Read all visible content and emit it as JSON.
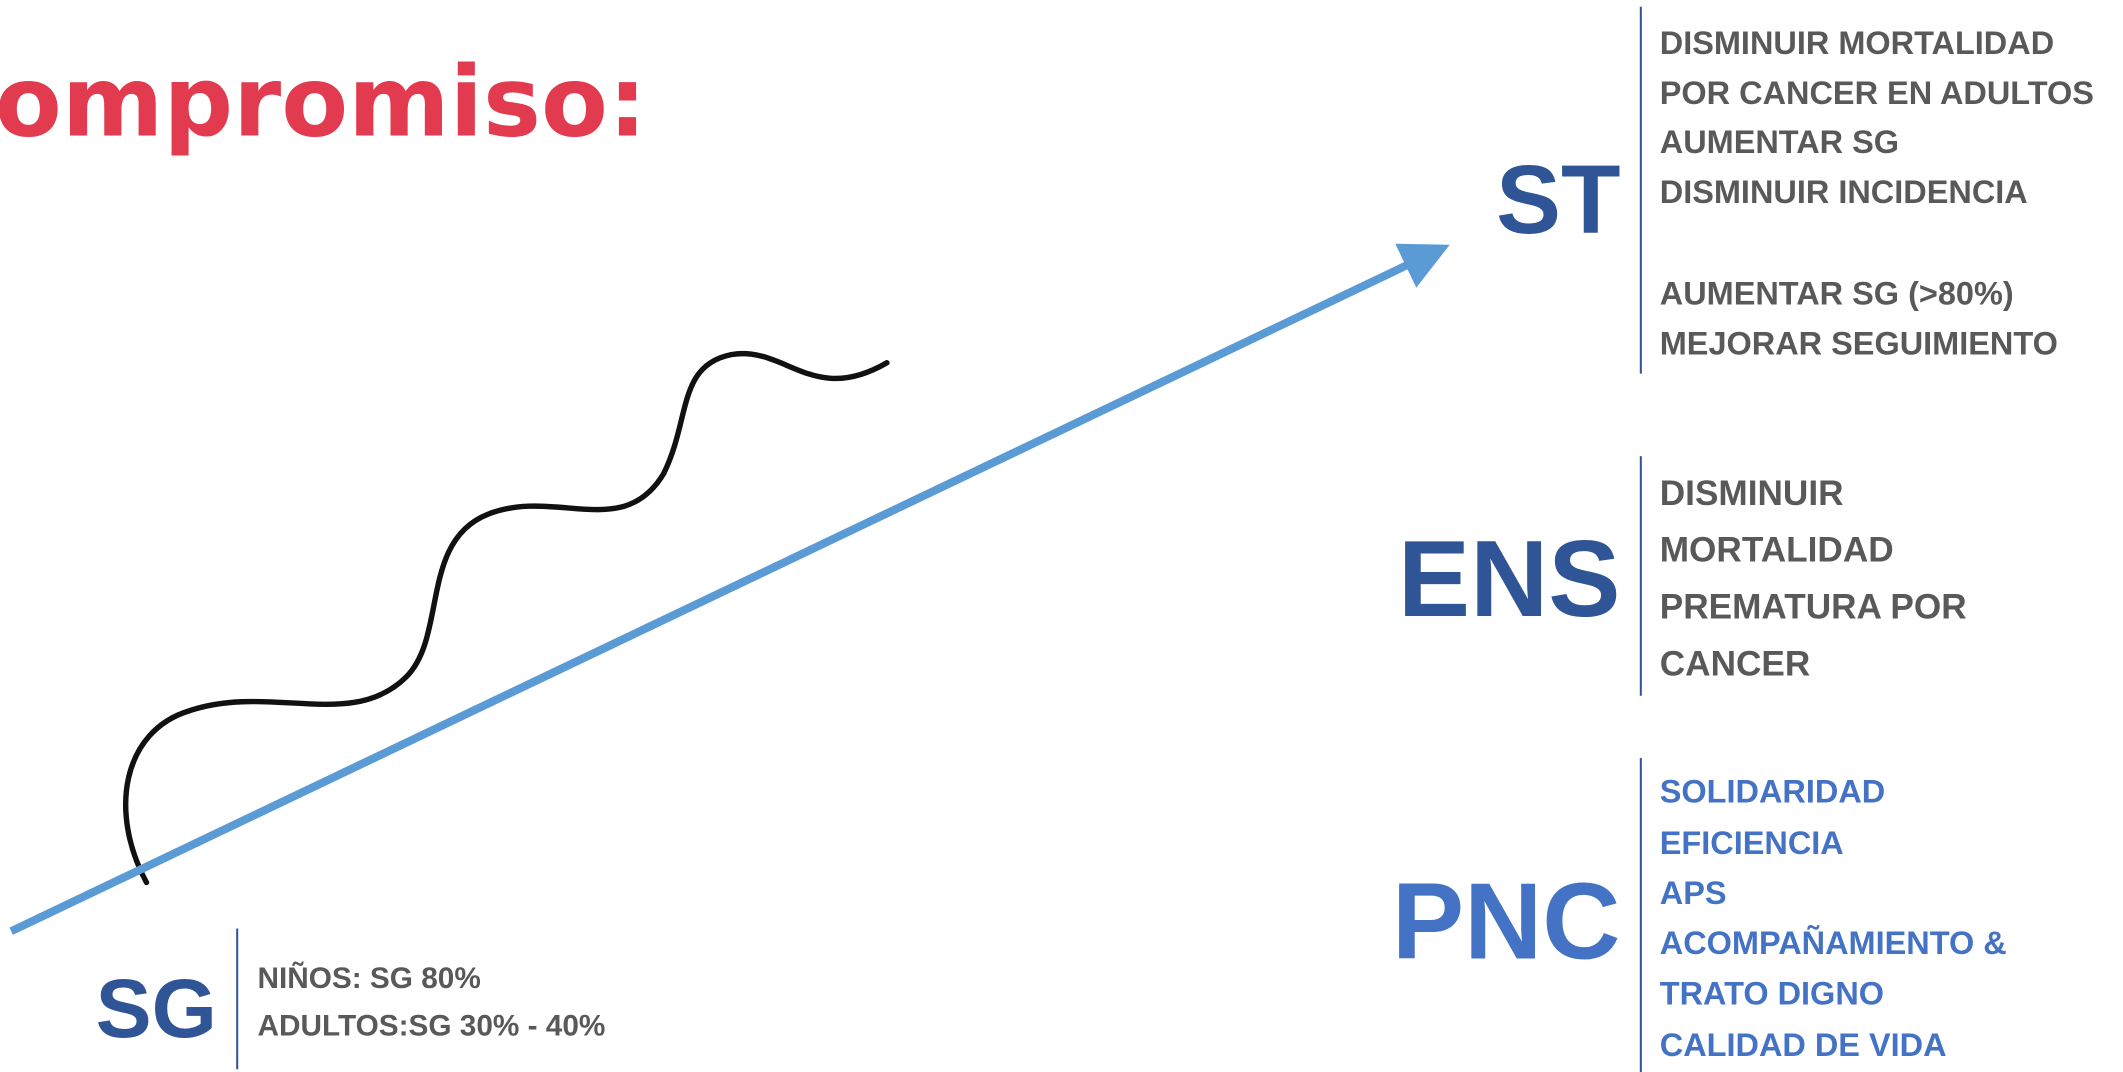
{
  "title": "ompromiso:",
  "blocks": [
    {
      "label": "SG",
      "lines": [
        "NIÑOS: SG 80%",
        "ADULTOS:SG 30% - 40%"
      ]
    },
    {
      "label": "ST",
      "lines": [
        "DISMINUIR MORTALIDAD",
        "POR CANCER EN ADULTOS",
        "AUMENTAR SG",
        "DISMINUIR INCIDENCIA",
        "AUMENTAR SG (>80%)",
        "MEJORAR SEGUIMIENTO"
      ]
    },
    {
      "label": "ENS",
      "lines": [
        "DISMINUIR",
        "MORTALIDAD",
        "PREMATURA POR",
        "CANCER"
      ]
    },
    {
      "label": "PNC",
      "lines": [
        "SOLIDARIDAD",
        "EFICIENCIA",
        "APS",
        "ACOMPAÑAMIENTO &",
        "TRATO DIGNO",
        "CALIDAD DE VIDA"
      ]
    }
  ]
}
